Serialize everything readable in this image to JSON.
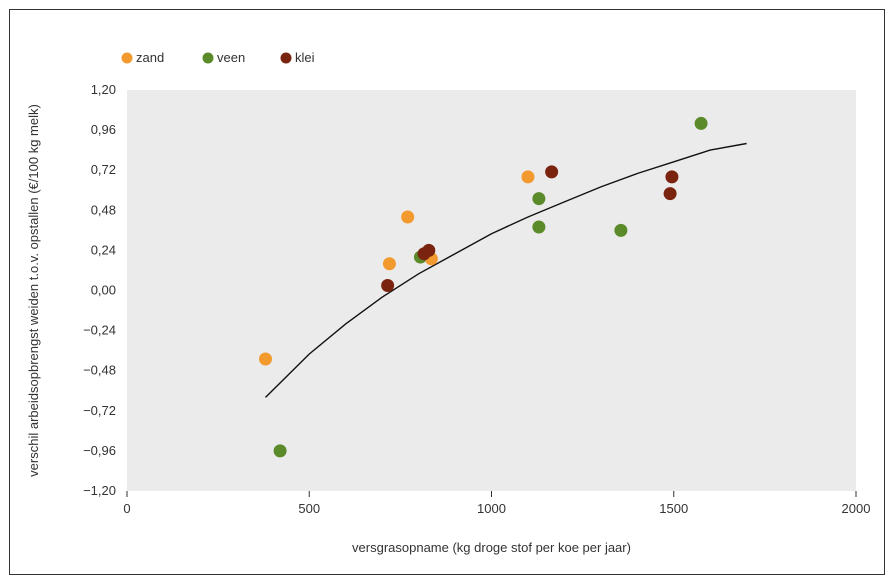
{
  "chart_data": {
    "type": "scatter",
    "title": "",
    "xlabel": "versgrasopname (kg droge stof per koe per jaar)",
    "ylabel": "verschil arbeidsopbrengst weiden t.o.v. opstallen (€/100 kg melk)",
    "xlim": [
      0,
      2000
    ],
    "ylim": [
      -1.2,
      1.2
    ],
    "x_ticks": [
      "0",
      "500",
      "1000",
      "1500",
      "2000"
    ],
    "y_ticks": [
      "1,20",
      "0,96",
      "0,72",
      "0,48",
      "0,24",
      "0,00",
      "−0,24",
      "−0,48",
      "−0,72",
      "−0,96",
      "−1,20"
    ],
    "grid": false,
    "legend_position": "top-left",
    "series": [
      {
        "name": "zand",
        "color": "#f39a2e",
        "points": [
          [
            380,
            -0.41
          ],
          [
            720,
            0.16
          ],
          [
            770,
            0.44
          ],
          [
            835,
            0.19
          ],
          [
            1100,
            0.68
          ]
        ]
      },
      {
        "name": "veen",
        "color": "#5a8a2a",
        "points": [
          [
            420,
            -0.96
          ],
          [
            805,
            0.2
          ],
          [
            1130,
            0.55
          ],
          [
            1130,
            0.38
          ],
          [
            1355,
            0.36
          ],
          [
            1575,
            1.0
          ]
        ]
      },
      {
        "name": "klei",
        "color": "#7a2410",
        "points": [
          [
            715,
            0.03
          ],
          [
            815,
            0.22
          ],
          [
            828,
            0.24
          ],
          [
            1165,
            0.71
          ],
          [
            1490,
            0.58
          ],
          [
            1495,
            0.68
          ]
        ]
      }
    ],
    "trendline": {
      "type": "logarithmic",
      "color": "#111111",
      "points": [
        [
          380,
          -0.64
        ],
        [
          500,
          -0.38
        ],
        [
          600,
          -0.2
        ],
        [
          700,
          -0.04
        ],
        [
          800,
          0.1
        ],
        [
          900,
          0.22
        ],
        [
          1000,
          0.34
        ],
        [
          1100,
          0.44
        ],
        [
          1200,
          0.53
        ],
        [
          1300,
          0.62
        ],
        [
          1400,
          0.7
        ],
        [
          1500,
          0.77
        ],
        [
          1600,
          0.84
        ],
        [
          1700,
          0.88
        ]
      ]
    },
    "plot_background": "#ebebeb"
  }
}
